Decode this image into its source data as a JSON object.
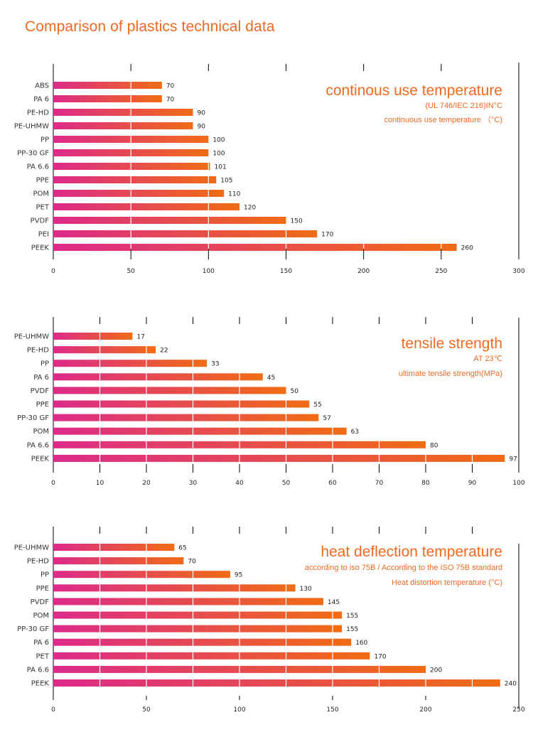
{
  "page": {
    "title": "Comparison of plastics technical data"
  },
  "colors": {
    "accent": "#ee6a23",
    "gradient_start": "#dc2a8a",
    "gradient_end": "#f06c14",
    "axis": "#000000"
  },
  "chart_data": [
    {
      "type": "bar",
      "orientation": "horizontal",
      "title": "continous use temperature",
      "subtitle": "(UL 746/IEC 216)IN°C",
      "note": "continuous use temperature （°C)",
      "categories": [
        "ABS",
        "PA 6",
        "PE-HD",
        "PE-UHMW",
        "PP",
        "PP-30 GF",
        "PA 6.6",
        "PPE",
        "POM",
        "PET",
        "PVDF",
        "PEI",
        "PEEK"
      ],
      "values": [
        70,
        70,
        90,
        90,
        100,
        100,
        101,
        105,
        110,
        120,
        150,
        170,
        260
      ],
      "value_labels": [
        "70",
        "70",
        "90",
        "90",
        "100",
        "100",
        "101",
        "105",
        "110",
        "120",
        "150",
        "170",
        "260"
      ],
      "xlim": [
        0,
        300
      ],
      "xticks": [
        0,
        50,
        100,
        150,
        200,
        250,
        300
      ],
      "xtick_labels": [
        "0",
        "50",
        "100",
        "150",
        "200",
        "250",
        "300"
      ],
      "top_ticks": [
        50,
        100,
        150,
        200,
        250
      ],
      "grid": "white vertical lines through bars",
      "legend": "none",
      "annotation_position": "top-right"
    },
    {
      "type": "bar",
      "orientation": "horizontal",
      "title": "tensile strength",
      "subtitle": "AT 23℃",
      "note": "ultimate tensile strength(MPa)",
      "categories": [
        "PE-UHMW",
        "PE-HD",
        "PP",
        "PA 6",
        "PVDF",
        "PPE",
        "PP-30 GF",
        "POM",
        "PA 6.6",
        "PEEK"
      ],
      "values": [
        17,
        22,
        33,
        45,
        50,
        55,
        57,
        63,
        80,
        97
      ],
      "value_labels": [
        "17",
        "22",
        "33",
        "45",
        "50",
        "55",
        "57",
        "63",
        "80",
        "97"
      ],
      "xlim": [
        0,
        100
      ],
      "xticks": [
        0,
        10,
        20,
        30,
        40,
        50,
        60,
        70,
        80,
        90,
        100
      ],
      "xtick_labels": [
        "0",
        "10",
        "20",
        "30",
        "40",
        "50",
        "60",
        "70",
        "80",
        "90",
        "100"
      ],
      "top_ticks": [
        10,
        20,
        30,
        40,
        50,
        60,
        70,
        80,
        90
      ],
      "grid": "white vertical lines through bars",
      "legend": "none",
      "annotation_position": "top-right"
    },
    {
      "type": "bar",
      "orientation": "horizontal",
      "title": "heat deflection temperature",
      "subtitle": "according to iso 75B / According to the ISO 75B standard",
      "note": "Heat distortion temperature (°C)",
      "categories": [
        "PE-UHMW",
        "PE-HD",
        "PP",
        "PPE",
        "PVDF",
        "POM",
        "PP-30 GF",
        "PA 6",
        "PET",
        "PA 6.6",
        "PEEK"
      ],
      "values": [
        65,
        70,
        95,
        130,
        145,
        155,
        155,
        160,
        170,
        200,
        240
      ],
      "value_labels": [
        "65",
        "70",
        "95",
        "130",
        "145",
        "155",
        "155",
        "160",
        "170",
        "200",
        "240"
      ],
      "xlim": [
        0,
        250
      ],
      "xticks": [
        0,
        50,
        100,
        150,
        200,
        250
      ],
      "xtick_labels": [
        "0",
        "50",
        "100",
        "150",
        "200",
        "250"
      ],
      "top_ticks": [
        25,
        50,
        75,
        100,
        125,
        150,
        175,
        200,
        225
      ],
      "grid": "white vertical lines through bars",
      "legend": "none",
      "annotation_position": "top-right"
    }
  ]
}
